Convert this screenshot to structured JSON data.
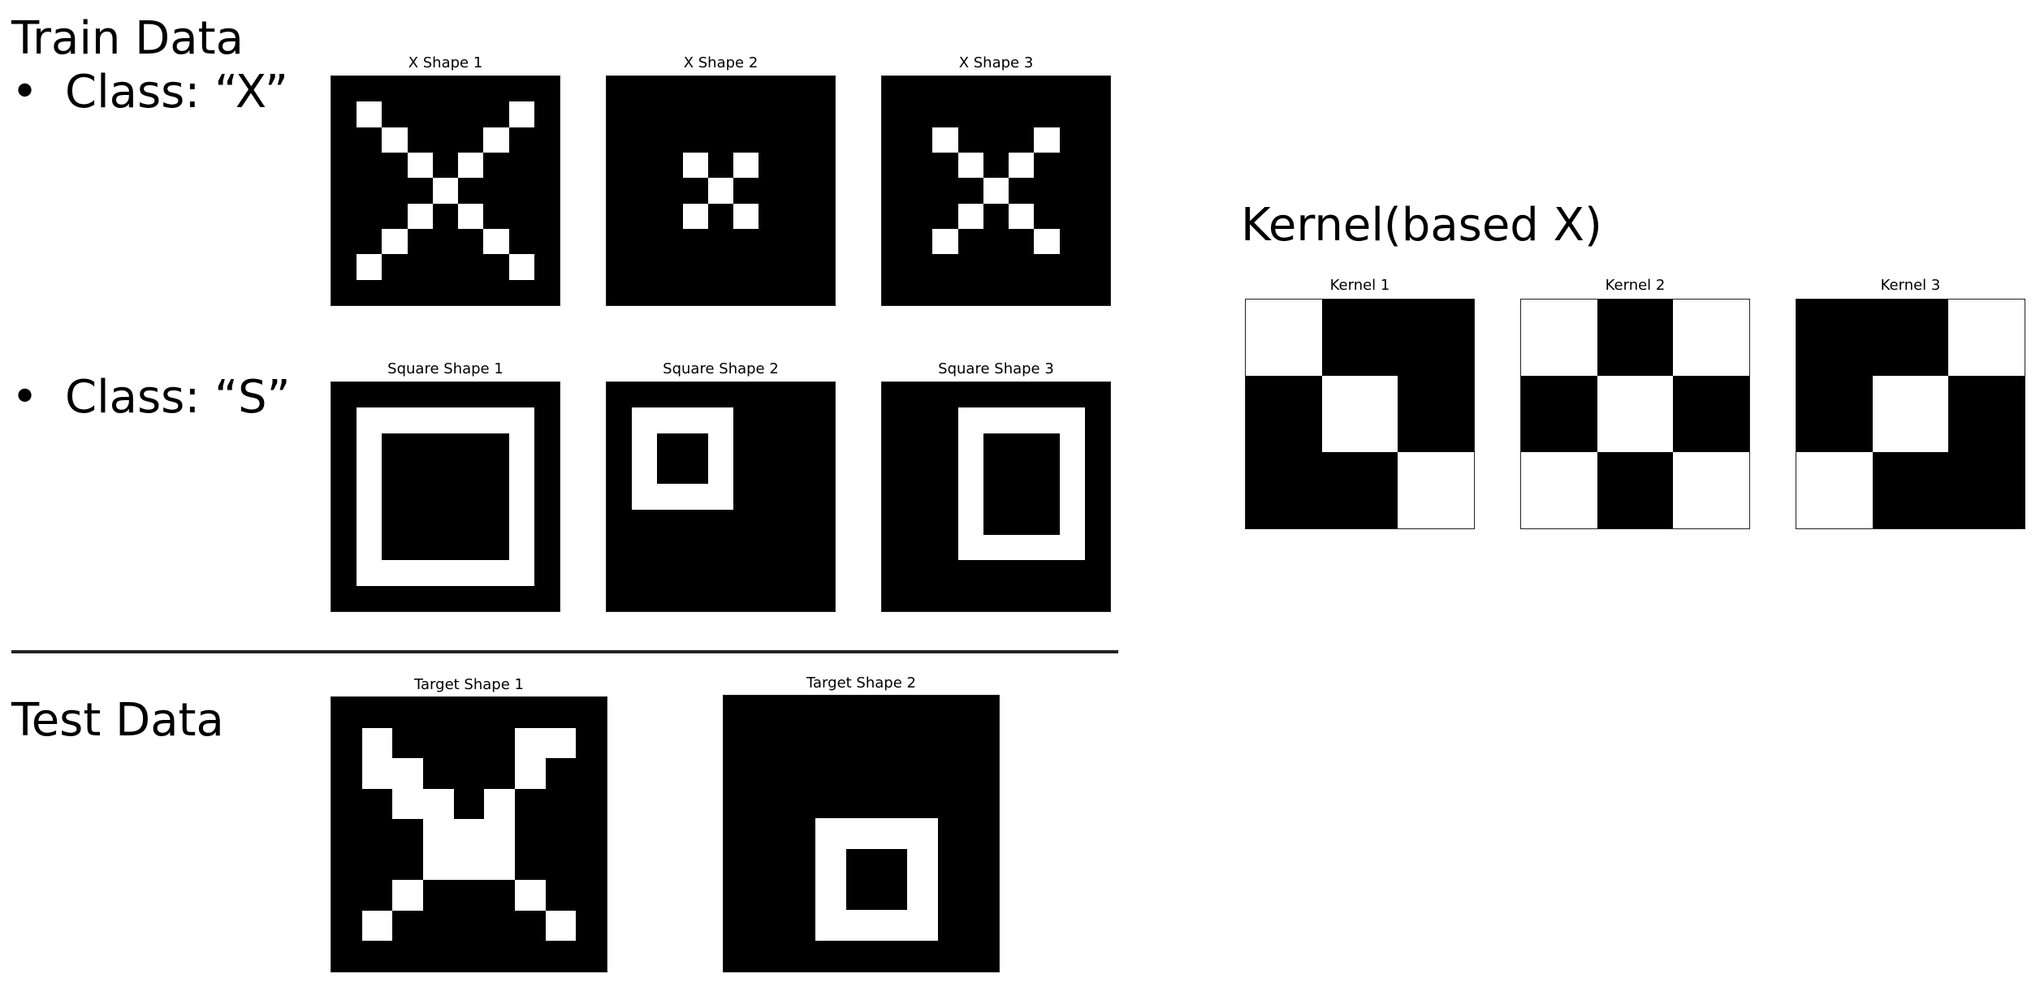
{
  "train_section": {
    "heading": "Train Data",
    "class_x_bullet": "•",
    "class_x_label": "Class: “X”",
    "class_s_bullet": "•",
    "class_s_label": "Class: “S”"
  },
  "test_section": {
    "heading": "Test Data"
  },
  "kernel_section": {
    "heading": "Kernel(based X)"
  },
  "colors": {
    "on": "#ffffff",
    "off": "#000000"
  },
  "panels": [
    {
      "id": "x1",
      "title": "X Shape 1",
      "rows": 9,
      "cols": 9,
      "on_cells": [
        [
          1,
          1
        ],
        [
          1,
          7
        ],
        [
          2,
          2
        ],
        [
          2,
          6
        ],
        [
          3,
          3
        ],
        [
          3,
          5
        ],
        [
          4,
          4
        ],
        [
          5,
          3
        ],
        [
          5,
          5
        ],
        [
          6,
          2
        ],
        [
          6,
          6
        ],
        [
          7,
          1
        ],
        [
          7,
          7
        ]
      ]
    },
    {
      "id": "x2",
      "title": "X Shape 2",
      "rows": 9,
      "cols": 9,
      "on_cells": [
        [
          3,
          3
        ],
        [
          3,
          5
        ],
        [
          4,
          4
        ],
        [
          5,
          3
        ],
        [
          5,
          5
        ]
      ]
    },
    {
      "id": "x3",
      "title": "X Shape 3",
      "rows": 9,
      "cols": 9,
      "on_cells": [
        [
          2,
          2
        ],
        [
          2,
          6
        ],
        [
          3,
          3
        ],
        [
          3,
          5
        ],
        [
          4,
          4
        ],
        [
          5,
          3
        ],
        [
          5,
          5
        ],
        [
          6,
          2
        ],
        [
          6,
          6
        ]
      ]
    },
    {
      "id": "s1",
      "title": "Square Shape 1",
      "rows": 9,
      "cols": 9,
      "on_cells": [
        [
          1,
          1
        ],
        [
          1,
          2
        ],
        [
          1,
          3
        ],
        [
          1,
          4
        ],
        [
          1,
          5
        ],
        [
          1,
          6
        ],
        [
          1,
          7
        ],
        [
          2,
          1
        ],
        [
          2,
          7
        ],
        [
          3,
          1
        ],
        [
          3,
          7
        ],
        [
          4,
          1
        ],
        [
          4,
          7
        ],
        [
          5,
          1
        ],
        [
          5,
          7
        ],
        [
          6,
          1
        ],
        [
          6,
          7
        ],
        [
          7,
          1
        ],
        [
          7,
          2
        ],
        [
          7,
          3
        ],
        [
          7,
          4
        ],
        [
          7,
          5
        ],
        [
          7,
          6
        ],
        [
          7,
          7
        ]
      ]
    },
    {
      "id": "s2",
      "title": "Square Shape 2",
      "rows": 9,
      "cols": 9,
      "on_cells": [
        [
          1,
          1
        ],
        [
          1,
          2
        ],
        [
          1,
          3
        ],
        [
          1,
          4
        ],
        [
          2,
          1
        ],
        [
          2,
          4
        ],
        [
          3,
          1
        ],
        [
          3,
          4
        ],
        [
          4,
          1
        ],
        [
          4,
          2
        ],
        [
          4,
          3
        ],
        [
          4,
          4
        ]
      ]
    },
    {
      "id": "s3",
      "title": "Square Shape 3",
      "rows": 9,
      "cols": 9,
      "on_cells": [
        [
          1,
          3
        ],
        [
          1,
          4
        ],
        [
          1,
          5
        ],
        [
          1,
          6
        ],
        [
          1,
          7
        ],
        [
          2,
          3
        ],
        [
          2,
          7
        ],
        [
          3,
          3
        ],
        [
          3,
          7
        ],
        [
          4,
          3
        ],
        [
          4,
          7
        ],
        [
          5,
          3
        ],
        [
          5,
          7
        ],
        [
          6,
          3
        ],
        [
          6,
          4
        ],
        [
          6,
          5
        ],
        [
          6,
          6
        ],
        [
          6,
          7
        ]
      ]
    },
    {
      "id": "t1",
      "title": "Target Shape 1",
      "rows": 9,
      "cols": 9,
      "on_cells": [
        [
          1,
          1
        ],
        [
          1,
          6
        ],
        [
          1,
          7
        ],
        [
          2,
          1
        ],
        [
          2,
          2
        ],
        [
          2,
          6
        ],
        [
          3,
          2
        ],
        [
          3,
          3
        ],
        [
          3,
          5
        ],
        [
          4,
          3
        ],
        [
          4,
          4
        ],
        [
          4,
          5
        ],
        [
          5,
          3
        ],
        [
          5,
          4
        ],
        [
          5,
          5
        ],
        [
          6,
          2
        ],
        [
          6,
          6
        ],
        [
          7,
          1
        ],
        [
          7,
          7
        ]
      ]
    },
    {
      "id": "t2",
      "title": "Target Shape 2",
      "rows": 9,
      "cols": 9,
      "on_cells": [
        [
          4,
          3
        ],
        [
          4,
          4
        ],
        [
          4,
          5
        ],
        [
          4,
          6
        ],
        [
          5,
          3
        ],
        [
          5,
          6
        ],
        [
          6,
          3
        ],
        [
          6,
          6
        ],
        [
          7,
          3
        ],
        [
          7,
          4
        ],
        [
          7,
          5
        ],
        [
          7,
          6
        ]
      ]
    },
    {
      "id": "k1",
      "title": "Kernel 1",
      "rows": 3,
      "cols": 3,
      "on_cells": [
        [
          0,
          0
        ],
        [
          1,
          1
        ],
        [
          2,
          2
        ]
      ]
    },
    {
      "id": "k2",
      "title": "Kernel 2",
      "rows": 3,
      "cols": 3,
      "on_cells": [
        [
          0,
          0
        ],
        [
          0,
          2
        ],
        [
          1,
          1
        ],
        [
          2,
          0
        ],
        [
          2,
          2
        ]
      ]
    },
    {
      "id": "k3",
      "title": "Kernel 3",
      "rows": 3,
      "cols": 3,
      "on_cells": [
        [
          0,
          2
        ],
        [
          1,
          1
        ],
        [
          2,
          0
        ]
      ]
    }
  ]
}
